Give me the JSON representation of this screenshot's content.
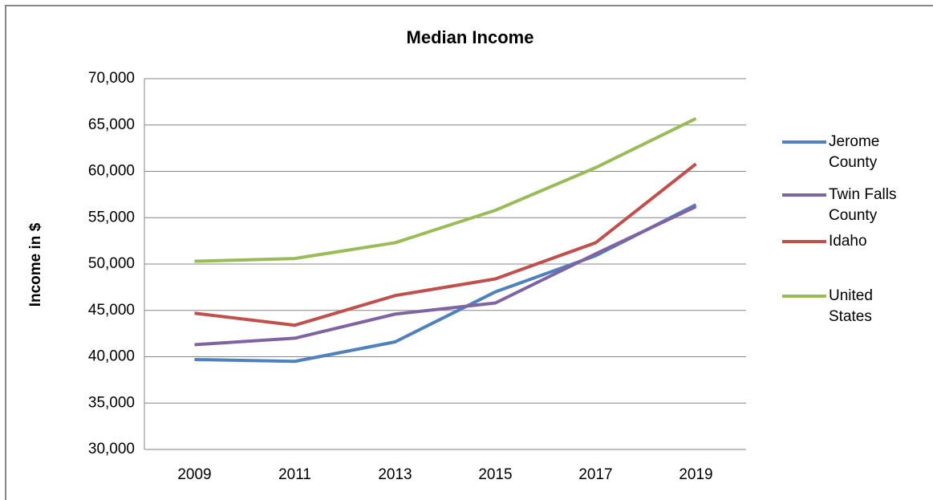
{
  "chart_data": {
    "type": "line",
    "title": "Median Income",
    "y_label": "Income in $",
    "categories": [
      "2009",
      "2011",
      "2013",
      "2015",
      "2017",
      "2019"
    ],
    "series": [
      {
        "name": "Jerome County",
        "color": "#4f81bd",
        "values": [
          39700,
          39500,
          41600,
          47000,
          50900,
          56400
        ]
      },
      {
        "name": "Twin Falls County",
        "color": "#8064a2",
        "values": [
          41300,
          42000,
          44600,
          45800,
          51100,
          56200
        ]
      },
      {
        "name": "Idaho",
        "color": "#c0504d",
        "values": [
          44700,
          43400,
          46600,
          48400,
          52300,
          60800
        ]
      },
      {
        "name": "United States",
        "color": "#9bbb59",
        "values": [
          50300,
          50600,
          52300,
          55800,
          60400,
          65700
        ]
      }
    ],
    "ylim": [
      30000,
      70000
    ],
    "yticks": [
      {
        "value": 30000,
        "label": "30,000"
      },
      {
        "value": 35000,
        "label": "35,000"
      },
      {
        "value": 40000,
        "label": "40,000"
      },
      {
        "value": 45000,
        "label": "45,000"
      },
      {
        "value": 50000,
        "label": "50,000"
      },
      {
        "value": 55000,
        "label": "55,000"
      },
      {
        "value": 60000,
        "label": "60,000"
      },
      {
        "value": 65000,
        "label": "65,000"
      },
      {
        "value": 70000,
        "label": "70,000"
      }
    ],
    "grid": true,
    "legend": "right"
  }
}
